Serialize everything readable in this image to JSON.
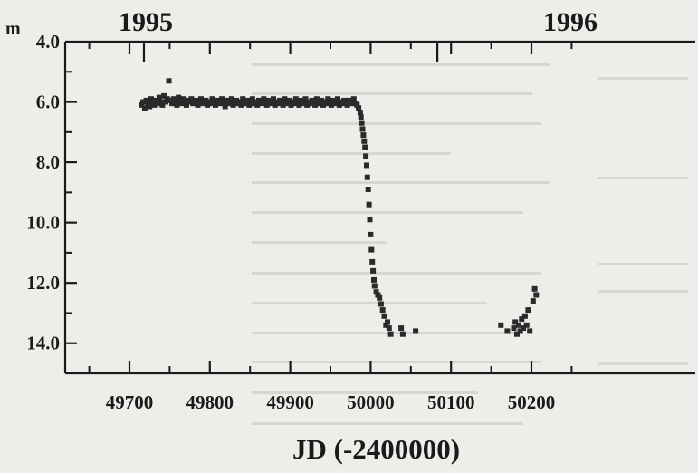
{
  "chart_data": {
    "type": "scatter",
    "title": "",
    "xlabel": "JD (-2400000)",
    "ylabel": "m",
    "xlim": [
      49640,
      50250
    ],
    "ylim": [
      4.0,
      15.0
    ],
    "y_inverted": true,
    "xticks": [
      49700,
      49800,
      49900,
      50000,
      50100,
      50200
    ],
    "xtick_labels": [
      "49700",
      "49800",
      "49900",
      "50000",
      "50100",
      "50200"
    ],
    "yticks": [
      4.0,
      6.0,
      8.0,
      10.0,
      12.0,
      14.0
    ],
    "ytick_labels": [
      "4.0",
      "6.0",
      "8.0",
      "10.0",
      "12.0",
      "14.0"
    ],
    "year_labels": [
      {
        "text": "1995",
        "x": 49683
      },
      {
        "text": "1996",
        "x": 50131
      }
    ],
    "marker": "filled-square",
    "color": "#2a2a2a",
    "grid": false,
    "legend": "none",
    "series": [
      {
        "points": [
          [
            49715,
            6.1
          ],
          [
            49717,
            6.0
          ],
          [
            49719,
            6.2
          ],
          [
            49721,
            5.95
          ],
          [
            49723,
            6.05
          ],
          [
            49725,
            6.15
          ],
          [
            49727,
            5.9
          ],
          [
            49729,
            6.0
          ],
          [
            49731,
            6.1
          ],
          [
            49733,
            5.95
          ],
          [
            49735,
            6.05
          ],
          [
            49737,
            5.85
          ],
          [
            49739,
            6.0
          ],
          [
            49741,
            6.1
          ],
          [
            49743,
            5.8
          ],
          [
            49745,
            6.0
          ],
          [
            49747,
            5.9
          ],
          [
            49749,
            5.3
          ],
          [
            49751,
            5.95
          ],
          [
            49753,
            6.05
          ],
          [
            49755,
            5.9
          ],
          [
            49757,
            6.0
          ],
          [
            49759,
            6.1
          ],
          [
            49761,
            5.85
          ],
          [
            49763,
            5.95
          ],
          [
            49765,
            6.05
          ],
          [
            49767,
            5.9
          ],
          [
            49769,
            6.0
          ],
          [
            49771,
            6.1
          ],
          [
            49773,
            5.95
          ],
          [
            49775,
            6.0
          ],
          [
            49777,
            5.9
          ],
          [
            49779,
            6.05
          ],
          [
            49781,
            6.0
          ],
          [
            49783,
            5.95
          ],
          [
            49785,
            6.1
          ],
          [
            49787,
            6.0
          ],
          [
            49789,
            5.9
          ],
          [
            49791,
            6.05
          ],
          [
            49793,
            6.0
          ],
          [
            49795,
            5.95
          ],
          [
            49797,
            6.1
          ],
          [
            49799,
            6.0
          ],
          [
            49801,
            6.05
          ],
          [
            49803,
            5.9
          ],
          [
            49805,
            6.0
          ],
          [
            49807,
            6.1
          ],
          [
            49809,
            5.95
          ],
          [
            49811,
            6.0
          ],
          [
            49813,
            6.05
          ],
          [
            49815,
            5.9
          ],
          [
            49817,
            6.0
          ],
          [
            49819,
            6.15
          ],
          [
            49821,
            5.95
          ],
          [
            49823,
            6.05
          ],
          [
            49825,
            6.0
          ],
          [
            49827,
            5.9
          ],
          [
            49829,
            6.1
          ],
          [
            49831,
            6.0
          ],
          [
            49833,
            5.95
          ],
          [
            49835,
            6.05
          ],
          [
            49837,
            6.0
          ],
          [
            49839,
            6.1
          ],
          [
            49841,
            5.9
          ],
          [
            49843,
            6.0
          ],
          [
            49845,
            6.05
          ],
          [
            49847,
            5.95
          ],
          [
            49849,
            6.1
          ],
          [
            49851,
            6.0
          ],
          [
            49853,
            5.9
          ],
          [
            49855,
            6.05
          ],
          [
            49857,
            6.0
          ],
          [
            49859,
            6.1
          ],
          [
            49861,
            5.95
          ],
          [
            49863,
            6.0
          ],
          [
            49865,
            6.05
          ],
          [
            49867,
            5.9
          ],
          [
            49869,
            6.0
          ],
          [
            49871,
            6.1
          ],
          [
            49873,
            5.95
          ],
          [
            49875,
            6.05
          ],
          [
            49877,
            6.0
          ],
          [
            49879,
            5.9
          ],
          [
            49881,
            6.1
          ],
          [
            49883,
            6.0
          ],
          [
            49885,
            6.05
          ],
          [
            49887,
            5.95
          ],
          [
            49889,
            6.0
          ],
          [
            49891,
            6.1
          ],
          [
            49893,
            5.9
          ],
          [
            49895,
            6.05
          ],
          [
            49897,
            6.0
          ],
          [
            49899,
            5.95
          ],
          [
            49901,
            6.1
          ],
          [
            49903,
            6.0
          ],
          [
            49905,
            6.05
          ],
          [
            49907,
            5.9
          ],
          [
            49909,
            6.0
          ],
          [
            49911,
            6.1
          ],
          [
            49913,
            5.95
          ],
          [
            49915,
            6.05
          ],
          [
            49917,
            6.0
          ],
          [
            49919,
            5.9
          ],
          [
            49921,
            6.1
          ],
          [
            49923,
            6.0
          ],
          [
            49925,
            6.05
          ],
          [
            49927,
            5.95
          ],
          [
            49929,
            6.0
          ],
          [
            49931,
            6.1
          ],
          [
            49933,
            5.9
          ],
          [
            49935,
            6.05
          ],
          [
            49937,
            6.0
          ],
          [
            49939,
            5.95
          ],
          [
            49941,
            6.1
          ],
          [
            49943,
            6.0
          ],
          [
            49945,
            6.05
          ],
          [
            49947,
            5.9
          ],
          [
            49949,
            6.0
          ],
          [
            49951,
            6.1
          ],
          [
            49953,
            5.95
          ],
          [
            49955,
            6.05
          ],
          [
            49957,
            6.0
          ],
          [
            49959,
            5.9
          ],
          [
            49961,
            6.1
          ],
          [
            49963,
            6.0
          ],
          [
            49965,
            6.05
          ],
          [
            49967,
            5.95
          ],
          [
            49969,
            6.0
          ],
          [
            49971,
            6.1
          ],
          [
            49973,
            5.95
          ],
          [
            49975,
            6.05
          ],
          [
            49977,
            6.0
          ],
          [
            49979,
            5.9
          ],
          [
            49981,
            6.05
          ],
          [
            49983,
            6.1
          ],
          [
            49985,
            6.2
          ],
          [
            49987,
            6.35
          ],
          [
            49988,
            6.5
          ],
          [
            49989,
            6.7
          ],
          [
            49990,
            6.9
          ],
          [
            49991,
            7.1
          ],
          [
            49992,
            7.3
          ],
          [
            49993,
            7.5
          ],
          [
            49994,
            7.8
          ],
          [
            49995,
            8.1
          ],
          [
            49996,
            8.5
          ],
          [
            49997,
            8.9
          ],
          [
            49998,
            9.4
          ],
          [
            49999,
            9.9
          ],
          [
            50000,
            10.4
          ],
          [
            50001,
            10.9
          ],
          [
            50002,
            11.3
          ],
          [
            50003,
            11.6
          ],
          [
            50004,
            11.9
          ],
          [
            50005,
            12.1
          ],
          [
            50007,
            12.3
          ],
          [
            50009,
            12.4
          ],
          [
            50011,
            12.5
          ],
          [
            50013,
            12.7
          ],
          [
            50015,
            12.9
          ],
          [
            50017,
            13.1
          ],
          [
            50019,
            13.4
          ],
          [
            50021,
            13.3
          ],
          [
            50023,
            13.5
          ],
          [
            50025,
            13.7
          ],
          [
            50038,
            13.5
          ],
          [
            50040,
            13.7
          ],
          [
            50056,
            13.6
          ],
          [
            50162,
            13.4
          ],
          [
            50170,
            13.6
          ],
          [
            50178,
            13.5
          ],
          [
            50180,
            13.3
          ],
          [
            50182,
            13.7
          ],
          [
            50184,
            13.4
          ],
          [
            50186,
            13.6
          ],
          [
            50188,
            13.2
          ],
          [
            50190,
            13.5
          ],
          [
            50192,
            13.1
          ],
          [
            50194,
            13.4
          ],
          [
            50196,
            12.9
          ],
          [
            50198,
            13.6
          ],
          [
            50202,
            12.6
          ],
          [
            50204,
            12.2
          ],
          [
            50206,
            12.4
          ]
        ]
      }
    ]
  }
}
